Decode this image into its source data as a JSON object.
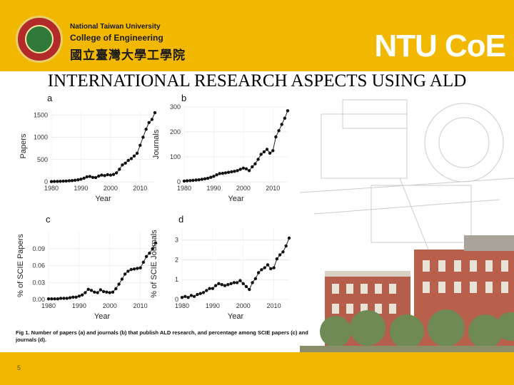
{
  "header": {
    "university": "National Taiwan University",
    "college": "College of Engineering",
    "college_cn": "國立臺灣大學工學院",
    "brand_ntu": "NTU ",
    "brand_coe": "CoE"
  },
  "slide": {
    "title": "INTERNATIONAL RESEARCH ASPECTS USING ALD",
    "caption": "Fig 1. Number of papers (a) and journals (b) that publish ALD research, and percentage among SCIE papers (c) and journals (d).",
    "page_number": "5"
  },
  "colors": {
    "header_bg": "#f2b800",
    "points": "#111111",
    "line": "#222222"
  },
  "chart_data": [
    {
      "type": "line",
      "panel": "a",
      "xlabel": "Year",
      "ylabel": "Papers",
      "xlim": [
        1980,
        2015
      ],
      "ylim": [
        0,
        1600
      ],
      "xticks": [
        1980,
        1990,
        2000,
        2010
      ],
      "yticks": [
        0,
        500,
        1000,
        1500
      ],
      "x": [
        1980,
        1981,
        1982,
        1983,
        1984,
        1985,
        1986,
        1987,
        1988,
        1989,
        1990,
        1991,
        1992,
        1993,
        1994,
        1995,
        1996,
        1997,
        1998,
        1999,
        2000,
        2001,
        2002,
        2003,
        2004,
        2005,
        2006,
        2007,
        2008,
        2009,
        2010,
        2011,
        2012,
        2013,
        2014,
        2015
      ],
      "values": [
        5,
        8,
        10,
        12,
        15,
        18,
        22,
        28,
        35,
        45,
        60,
        80,
        110,
        120,
        100,
        95,
        130,
        150,
        140,
        160,
        150,
        165,
        200,
        280,
        380,
        420,
        480,
        520,
        580,
        640,
        820,
        1000,
        1180,
        1330,
        1400,
        1550
      ]
    },
    {
      "type": "line",
      "panel": "b",
      "xlabel": "Year",
      "ylabel": "Journals",
      "xlim": [
        1980,
        2015
      ],
      "ylim": [
        0,
        300
      ],
      "xticks": [
        1980,
        1990,
        2000,
        2010
      ],
      "yticks": [
        0,
        100,
        200,
        300
      ],
      "x": [
        1980,
        1981,
        1982,
        1983,
        1984,
        1985,
        1986,
        1987,
        1988,
        1989,
        1990,
        1991,
        1992,
        1993,
        1994,
        1995,
        1996,
        1997,
        1998,
        1999,
        2000,
        2001,
        2002,
        2003,
        2004,
        2005,
        2006,
        2007,
        2008,
        2009,
        2010,
        2011,
        2012,
        2013,
        2014,
        2015
      ],
      "values": [
        3,
        4,
        5,
        6,
        7,
        8,
        10,
        12,
        14,
        18,
        22,
        28,
        33,
        34,
        36,
        38,
        40,
        42,
        45,
        50,
        55,
        52,
        45,
        60,
        72,
        90,
        110,
        120,
        130,
        115,
        125,
        180,
        205,
        230,
        255,
        285
      ]
    },
    {
      "type": "line",
      "panel": "c",
      "xlabel": "Year",
      "ylabel": "% of SCIE Papers",
      "xlim": [
        1980,
        2015
      ],
      "ylim": [
        0,
        0.12
      ],
      "xticks": [
        1980,
        1990,
        2000,
        2010
      ],
      "yticks": [
        0.0,
        0.03,
        0.06,
        0.09
      ],
      "ytick_labels": [
        "0.00",
        "0.03",
        "0.06",
        "0.09"
      ],
      "x": [
        1980,
        1981,
        1982,
        1983,
        1984,
        1985,
        1986,
        1987,
        1988,
        1989,
        1990,
        1991,
        1992,
        1993,
        1994,
        1995,
        1996,
        1997,
        1998,
        1999,
        2000,
        2001,
        2002,
        2003,
        2004,
        2005,
        2006,
        2007,
        2008,
        2009,
        2010,
        2011,
        2012,
        2013,
        2014,
        2015
      ],
      "values": [
        0.001,
        0.001,
        0.001,
        0.001,
        0.002,
        0.002,
        0.002,
        0.003,
        0.004,
        0.004,
        0.006,
        0.008,
        0.012,
        0.018,
        0.016,
        0.013,
        0.012,
        0.017,
        0.014,
        0.013,
        0.012,
        0.013,
        0.019,
        0.027,
        0.036,
        0.045,
        0.05,
        0.053,
        0.054,
        0.055,
        0.056,
        0.066,
        0.076,
        0.082,
        0.09,
        0.1
      ]
    },
    {
      "type": "line",
      "panel": "d",
      "xlabel": "Year",
      "ylabel": "% of SCIE Journals",
      "xlim": [
        1980,
        2015
      ],
      "ylim": [
        0,
        3.6
      ],
      "xticks": [
        1980,
        1990,
        2000,
        2010
      ],
      "yticks": [
        0,
        1,
        2,
        3
      ],
      "x": [
        1980,
        1981,
        1982,
        1983,
        1984,
        1985,
        1986,
        1987,
        1988,
        1989,
        1990,
        1991,
        1992,
        1993,
        1994,
        1995,
        1996,
        1997,
        1998,
        1999,
        2000,
        2001,
        2002,
        2003,
        2004,
        2005,
        2006,
        2007,
        2008,
        2009,
        2010,
        2011,
        2012,
        2013,
        2014,
        2015
      ],
      "values": [
        0.1,
        0.15,
        0.1,
        0.2,
        0.15,
        0.25,
        0.3,
        0.35,
        0.45,
        0.55,
        0.55,
        0.7,
        0.8,
        0.75,
        0.7,
        0.75,
        0.8,
        0.85,
        0.85,
        0.95,
        0.8,
        0.65,
        0.5,
        0.85,
        1.05,
        1.35,
        1.5,
        1.6,
        1.75,
        1.55,
        1.6,
        2.05,
        2.25,
        2.4,
        2.7,
        3.1
      ]
    }
  ]
}
